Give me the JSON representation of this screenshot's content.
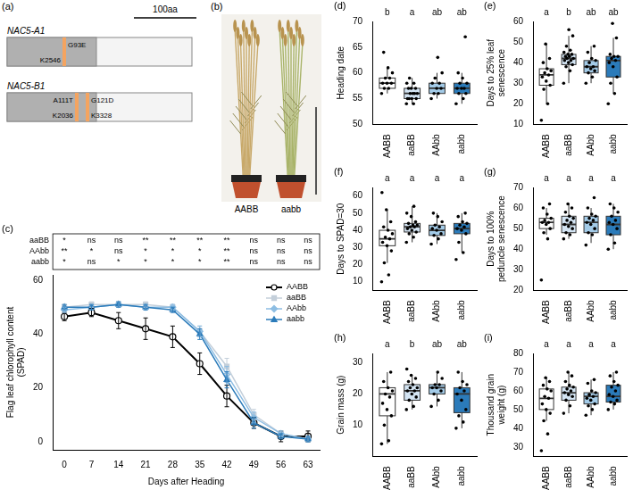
{
  "panel_a": {
    "letter": "(a)",
    "scale_bar": "100aa",
    "genes": [
      {
        "name": "NAC5-A1",
        "mutations": [
          {
            "change": "G93E",
            "line": "K2546"
          }
        ]
      },
      {
        "name": "NAC5-B1",
        "mutations": [
          {
            "change": "A111T",
            "line": "K2036"
          },
          {
            "change": "G121D",
            "line": "K3328"
          }
        ]
      }
    ]
  },
  "panel_b": {
    "letter": "(b)",
    "labels": [
      "AABB",
      "aabb"
    ]
  },
  "chart_data": [
    {
      "letter": "(c)",
      "type": "line",
      "x_label": "Days after Heading",
      "y_label": "Flag leaf chlorophyll content (SPAD)",
      "x": [
        0,
        7,
        14,
        21,
        28,
        35,
        42,
        49,
        56,
        63
      ],
      "xlim": [
        -3,
        66
      ],
      "xticks": [
        0,
        7,
        14,
        21,
        28,
        35,
        42,
        49,
        56,
        63
      ],
      "ylim": [
        -3,
        62
      ],
      "yticks": [
        0,
        20,
        40,
        60
      ],
      "grid": false,
      "legend": "upper right",
      "series": [
        {
          "name": "AABB",
          "color": "#000000",
          "marker": "circle_open",
          "values": [
            46.5,
            48,
            45,
            42,
            39,
            29,
            17,
            7,
            2,
            2
          ],
          "errors": [
            1.5,
            1.5,
            3,
            4,
            4,
            4,
            4,
            2,
            2,
            2
          ]
        },
        {
          "name": "aaBB",
          "color": "#c4cfda",
          "marker": "square",
          "values": [
            50,
            51,
            51,
            51,
            50,
            41,
            28,
            10,
            3,
            1
          ],
          "errors": [
            1,
            1,
            1,
            1,
            1,
            2,
            3,
            2,
            1,
            1
          ]
        },
        {
          "name": "AAbb",
          "color": "#8dbde3",
          "marker": "diamond",
          "values": [
            49,
            50,
            51,
            50,
            50,
            41,
            25,
            9,
            3,
            1
          ],
          "errors": [
            1,
            1,
            1,
            1,
            1,
            2,
            3,
            2,
            1,
            1
          ]
        },
        {
          "name": "aabb",
          "color": "#2b7bba",
          "marker": "triangle",
          "values": [
            50,
            50,
            51,
            50,
            49,
            40,
            23,
            7,
            2,
            1
          ],
          "errors": [
            1,
            1,
            1,
            1,
            1,
            2,
            3,
            2,
            1,
            1
          ]
        }
      ],
      "significance": {
        "rows": [
          {
            "name": "aaBB",
            "marks": [
              "*",
              "ns",
              "ns",
              "**",
              "**",
              "**",
              "**",
              "ns",
              "ns",
              "ns"
            ]
          },
          {
            "name": "AAbb",
            "marks": [
              "**",
              "*",
              "ns",
              "*",
              "*",
              "*",
              "**",
              "ns",
              "ns",
              "ns"
            ]
          },
          {
            "name": "aabb",
            "marks": [
              "*",
              "ns",
              "*",
              "*",
              "*",
              "*",
              "**",
              "ns",
              "ns",
              "ns"
            ]
          }
        ]
      }
    },
    {
      "letter": "(d)",
      "type": "box",
      "y_label": "Heading date",
      "categories": [
        "AABB",
        "aaBB",
        "AAbb",
        "aabb"
      ],
      "colors": [
        "#ffffff",
        "#d3e4f3",
        "#a3cbe8",
        "#2b7bba"
      ],
      "ylim": [
        50,
        70
      ],
      "yticks": [
        50,
        55,
        60,
        65,
        70
      ],
      "grid": false,
      "group_letters": [
        "b",
        "a",
        "ab",
        "ab"
      ],
      "boxes": [
        {
          "min": 56,
          "q1": 57,
          "median": 58,
          "q3": 59,
          "max": 61
        },
        {
          "min": 54,
          "q1": 55,
          "median": 56,
          "q3": 57,
          "max": 59
        },
        {
          "min": 55,
          "q1": 56,
          "median": 57,
          "q3": 58,
          "max": 60
        },
        {
          "min": 54,
          "q1": 56,
          "median": 57,
          "q3": 58,
          "max": 60
        }
      ],
      "points": [
        [
          56,
          57,
          57,
          58,
          58,
          58,
          59,
          59,
          60,
          61,
          64
        ],
        [
          54,
          54,
          55,
          55,
          55,
          55,
          56,
          56,
          56,
          56,
          57,
          57,
          57,
          58,
          58,
          59
        ],
        [
          55,
          56,
          56,
          57,
          57,
          58,
          58,
          59,
          60,
          63
        ],
        [
          54,
          55,
          56,
          56,
          57,
          57,
          57,
          58,
          58,
          59,
          60,
          67
        ]
      ]
    },
    {
      "letter": "(e)",
      "type": "box",
      "y_label": "Days to 25% leaf senescence",
      "categories": [
        "AABB",
        "aaBB",
        "AAbb",
        "aabb"
      ],
      "colors": [
        "#ffffff",
        "#d3e4f3",
        "#a3cbe8",
        "#2b7bba"
      ],
      "ylim": [
        10,
        60
      ],
      "yticks": [
        10,
        20,
        30,
        40,
        50,
        60
      ],
      "grid": false,
      "group_letters": [
        "a",
        "b",
        "ab",
        "ab"
      ],
      "boxes": [
        {
          "min": 20,
          "q1": 29,
          "median": 34,
          "q3": 37,
          "max": 49
        },
        {
          "min": 30,
          "q1": 39,
          "median": 42,
          "q3": 44,
          "max": 53
        },
        {
          "min": 30,
          "q1": 35,
          "median": 38,
          "q3": 41,
          "max": 48
        },
        {
          "min": 25,
          "q1": 33,
          "median": 41,
          "q3": 43,
          "max": 52
        }
      ],
      "points": [
        [
          12,
          20,
          27,
          29,
          31,
          33,
          34,
          35,
          36,
          37,
          40,
          42,
          49
        ],
        [
          30,
          36,
          38,
          39,
          40,
          41,
          41,
          42,
          42,
          43,
          43,
          44,
          44,
          45,
          46,
          48,
          53,
          56
        ],
        [
          30,
          33,
          35,
          36,
          37,
          38,
          38,
          40,
          41,
          42,
          45,
          48
        ],
        [
          20,
          25,
          30,
          33,
          38,
          40,
          41,
          42,
          43,
          43,
          44,
          52,
          59
        ]
      ]
    },
    {
      "letter": "(f)",
      "type": "box",
      "y_label": "Days to SPAD=30",
      "categories": [
        "AABB",
        "aaBB",
        "AAbb",
        "aabb"
      ],
      "colors": [
        "#ffffff",
        "#d3e4f3",
        "#a3cbe8",
        "#2b7bba"
      ],
      "ylim": [
        5,
        65
      ],
      "yticks": [
        10,
        20,
        30,
        40,
        50,
        60
      ],
      "grid": false,
      "group_letters": [
        "a",
        "a",
        "a",
        "a"
      ],
      "boxes": [
        {
          "min": 21,
          "q1": 31,
          "median": 35,
          "q3": 40,
          "max": 52
        },
        {
          "min": 33,
          "q1": 39,
          "median": 42,
          "q3": 44,
          "max": 54
        },
        {
          "min": 32,
          "q1": 37,
          "median": 40,
          "q3": 43,
          "max": 50
        },
        {
          "min": 27,
          "q1": 38,
          "median": 41,
          "q3": 44,
          "max": 50
        }
      ],
      "points": [
        [
          10,
          14,
          21,
          28,
          31,
          33,
          35,
          36,
          38,
          40,
          42,
          45,
          52,
          62
        ],
        [
          33,
          36,
          38,
          39,
          40,
          41,
          42,
          42,
          43,
          43,
          44,
          45,
          48,
          50,
          54
        ],
        [
          32,
          35,
          37,
          38,
          40,
          41,
          42,
          43,
          45,
          48,
          50
        ],
        [
          23,
          27,
          33,
          38,
          40,
          41,
          42,
          43,
          44,
          45,
          48,
          50
        ]
      ]
    },
    {
      "letter": "(g)",
      "type": "box",
      "y_label": "Days to 100% peduncle senescence",
      "categories": [
        "AABB",
        "aaBB",
        "AAbb",
        "aabb"
      ],
      "colors": [
        "#ffffff",
        "#d3e4f3",
        "#a3cbe8",
        "#2b7bba"
      ],
      "ylim": [
        20,
        70
      ],
      "yticks": [
        20,
        30,
        40,
        50,
        60,
        70
      ],
      "grid": false,
      "group_letters": [
        "a",
        "a",
        "a",
        "a"
      ],
      "boxes": [
        {
          "min": 47,
          "q1": 50,
          "median": 53,
          "q3": 55,
          "max": 60
        },
        {
          "min": 45,
          "q1": 48,
          "median": 52,
          "q3": 56,
          "max": 62
        },
        {
          "min": 43,
          "q1": 48,
          "median": 53,
          "q3": 56,
          "max": 60
        },
        {
          "min": 40,
          "q1": 47,
          "median": 52,
          "q3": 56,
          "max": 62
        }
      ],
      "points": [
        [
          25,
          45,
          48,
          50,
          52,
          53,
          53,
          54,
          55,
          57,
          60,
          62
        ],
        [
          45,
          47,
          48,
          50,
          51,
          52,
          53,
          54,
          55,
          56,
          58,
          60,
          62
        ],
        [
          42,
          47,
          48,
          50,
          52,
          53,
          54,
          55,
          56,
          57,
          60,
          65
        ],
        [
          40,
          43,
          47,
          50,
          52,
          53,
          54,
          56,
          58,
          60,
          62
        ]
      ]
    },
    {
      "letter": "(h)",
      "type": "box",
      "y_label": "Grain mass (g)",
      "categories": [
        "AABB",
        "aaBB",
        "AAbb",
        "aabb"
      ],
      "colors": [
        "#ffffff",
        "#d3e4f3",
        "#a3cbe8",
        "#2b7bba"
      ],
      "ylim": [
        0,
        33
      ],
      "yticks": [
        10,
        20,
        30
      ],
      "grid": false,
      "group_letters": [
        "a",
        "b",
        "ab",
        "ab"
      ],
      "boxes": [
        {
          "min": 4,
          "q1": 13,
          "median": 20,
          "q3": 22,
          "max": 27
        },
        {
          "min": 15,
          "q1": 18,
          "median": 21,
          "q3": 23,
          "max": 26
        },
        {
          "min": 16,
          "q1": 20,
          "median": 22,
          "q3": 23,
          "max": 27
        },
        {
          "min": 9,
          "q1": 14,
          "median": 20,
          "q3": 22,
          "max": 27
        }
      ],
      "points": [
        [
          4,
          5,
          10,
          13,
          15,
          17,
          19,
          20,
          21,
          22,
          24,
          27
        ],
        [
          15,
          16,
          18,
          19,
          20,
          21,
          21,
          22,
          22,
          23,
          24,
          25,
          26,
          28
        ],
        [
          16,
          18,
          20,
          21,
          22,
          22,
          23,
          23,
          25,
          27
        ],
        [
          9,
          11,
          13,
          15,
          18,
          20,
          21,
          22,
          23,
          24,
          27
        ]
      ]
    },
    {
      "letter": "(i)",
      "type": "box",
      "y_label": "Thousand grain weight (g)",
      "categories": [
        "AABB",
        "aaBB",
        "AAbb",
        "aabb"
      ],
      "colors": [
        "#ffffff",
        "#d3e4f3",
        "#a3cbe8",
        "#2b7bba"
      ],
      "ylim": [
        25,
        80
      ],
      "yticks": [
        30,
        40,
        50,
        60,
        70,
        80
      ],
      "grid": false,
      "group_letters": [
        "a",
        "a",
        "a",
        "a"
      ],
      "boxes": [
        {
          "min": 44,
          "q1": 50,
          "median": 56,
          "q3": 61,
          "max": 67
        },
        {
          "min": 48,
          "q1": 55,
          "median": 59,
          "q3": 62,
          "max": 70
        },
        {
          "min": 47,
          "q1": 53,
          "median": 57,
          "q3": 59,
          "max": 66
        },
        {
          "min": 50,
          "q1": 54,
          "median": 57,
          "q3": 63,
          "max": 70
        }
      ],
      "points": [
        [
          28,
          37,
          44,
          48,
          50,
          53,
          56,
          57,
          60,
          61,
          63,
          65,
          67
        ],
        [
          48,
          52,
          55,
          57,
          58,
          59,
          60,
          61,
          62,
          63,
          65,
          68,
          70
        ],
        [
          47,
          50,
          52,
          53,
          55,
          56,
          57,
          58,
          59,
          60,
          64,
          66
        ],
        [
          50,
          53,
          54,
          55,
          57,
          58,
          60,
          62,
          63,
          65,
          68,
          70
        ]
      ]
    }
  ]
}
